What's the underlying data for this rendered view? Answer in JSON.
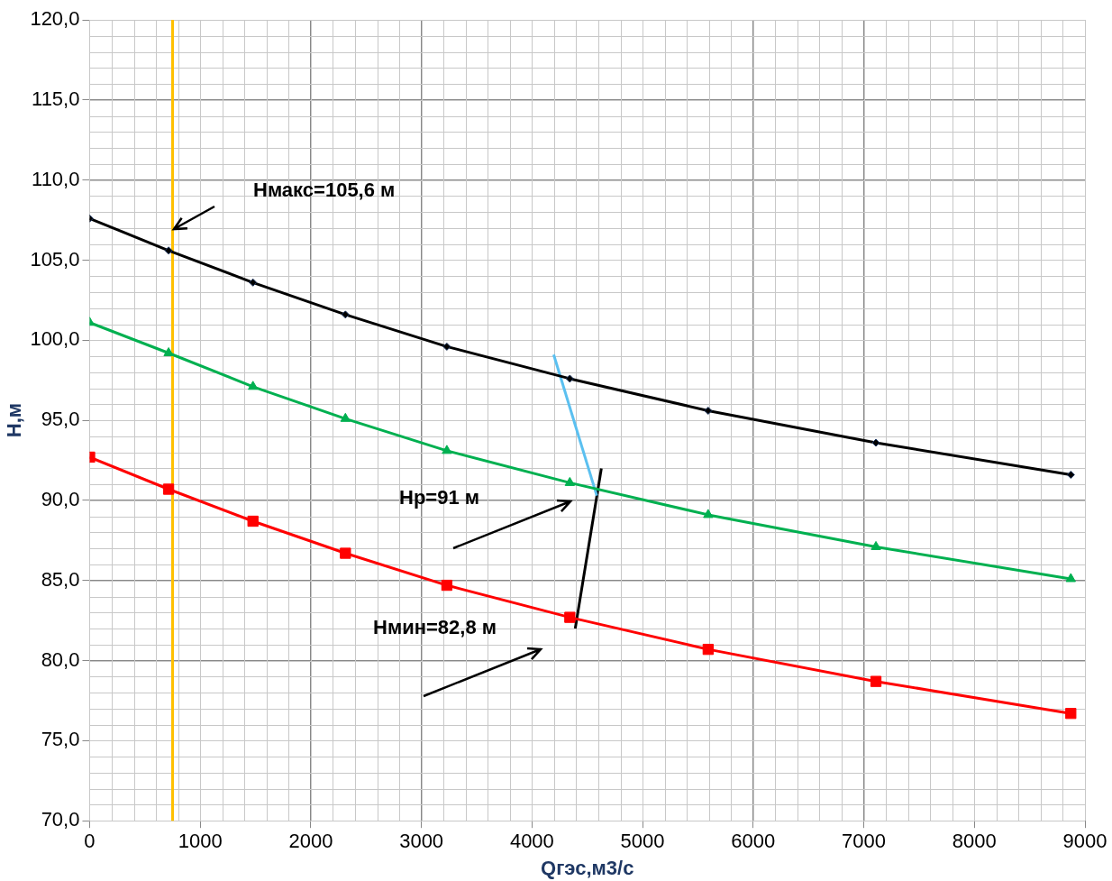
{
  "chart_data": {
    "type": "line",
    "xlabel": "Qгэс,м3/с",
    "ylabel": "Н,м",
    "xlim": [
      0,
      9000
    ],
    "xticks": [
      0,
      1000,
      2000,
      3000,
      4000,
      5000,
      6000,
      7000,
      8000,
      9000
    ],
    "ylim": [
      70,
      120
    ],
    "yticks": [
      {
        "value": 70,
        "label": "70,0"
      },
      {
        "value": 75,
        "label": "75,0"
      },
      {
        "value": 80,
        "label": "80,0"
      },
      {
        "value": 85,
        "label": "85,0"
      },
      {
        "value": 90,
        "label": "90,0"
      },
      {
        "value": 95,
        "label": "95,0"
      },
      {
        "value": 100,
        "label": "100,0"
      },
      {
        "value": 105,
        "label": "105,0"
      },
      {
        "value": 110,
        "label": "110,0"
      },
      {
        "value": 115,
        "label": "115,0"
      },
      {
        "value": 120,
        "label": "120,0"
      }
    ],
    "grid": true,
    "legend": false,
    "line_style": "solid",
    "series": [
      {
        "color": "#000000",
        "marker": "diamond",
        "x": [
          0,
          714,
          1477,
          2313,
          3230,
          4342,
          5593,
          7110,
          8872
        ],
        "values": [
          107.6,
          105.6,
          103.6,
          101.6,
          99.6,
          97.6,
          95.6,
          93.6,
          91.6
        ]
      },
      {
        "color": "#00b050",
        "marker": "triangle",
        "x": [
          0,
          714,
          1477,
          2313,
          3230,
          4342,
          5593,
          7110,
          8872
        ],
        "values": [
          101.1,
          99.2,
          97.1,
          95.1,
          93.1,
          91.1,
          89.1,
          87.1,
          85.1
        ]
      },
      {
        "color": "#ff0000",
        "marker": "square",
        "x": [
          0,
          714,
          1477,
          2313,
          3230,
          4342,
          5593,
          7110,
          8872
        ],
        "values": [
          92.7,
          90.7,
          88.7,
          86.7,
          84.7,
          82.7,
          80.7,
          78.7,
          76.7
        ]
      },
      {
        "color": "#5bc0f0",
        "marker": "none",
        "x": [
          4196,
          4586
        ],
        "values": [
          99.1,
          90.3
        ]
      },
      {
        "color": "#000000",
        "marker": "none",
        "x": [
          4627,
          4391
        ],
        "values": [
          92.0,
          82.0
        ]
      }
    ],
    "ref_lines": [
      {
        "axis": "x",
        "value": 750,
        "color": "#ffc000"
      }
    ],
    "annotations": [
      "Нмакс=105,6 м",
      "Нр=91 м",
      "Нмин=82,8 м"
    ]
  }
}
